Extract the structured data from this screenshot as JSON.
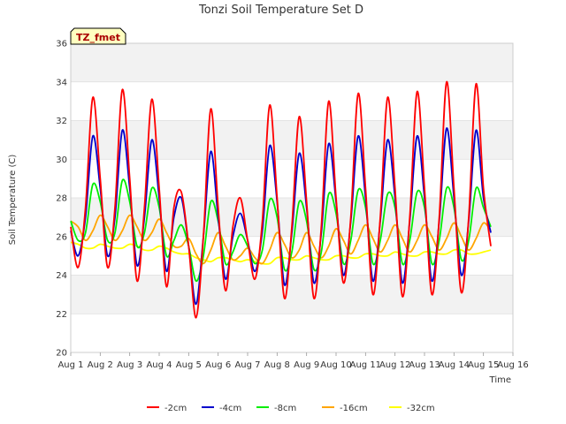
{
  "chart_data": {
    "type": "line",
    "title": "Tonzi Soil Temperature Set D",
    "xlabel": "Time",
    "ylabel": "Soil Temperature (C)",
    "badge": "TZ_fmet",
    "xlim": [
      1,
      16
    ],
    "ylim": [
      20,
      36
    ],
    "y_ticks": [
      20,
      22,
      24,
      26,
      28,
      30,
      32,
      34,
      36
    ],
    "x_ticks": [
      {
        "value": 1,
        "label": "Aug 1"
      },
      {
        "value": 2,
        "label": "Aug 2"
      },
      {
        "value": 3,
        "label": "Aug 3"
      },
      {
        "value": 4,
        "label": "Aug 4"
      },
      {
        "value": 5,
        "label": "Aug 5"
      },
      {
        "value": 6,
        "label": "Aug 6"
      },
      {
        "value": 7,
        "label": "Aug 7"
      },
      {
        "value": 8,
        "label": "Aug 8"
      },
      {
        "value": 9,
        "label": "Aug 9"
      },
      {
        "value": 10,
        "label": "Aug 10"
      },
      {
        "value": 11,
        "label": "Aug 11"
      },
      {
        "value": 12,
        "label": "Aug 12"
      },
      {
        "value": 13,
        "label": "Aug 13"
      },
      {
        "value": 14,
        "label": "Aug 14"
      },
      {
        "value": 15,
        "label": "Aug 15"
      },
      {
        "value": 16,
        "label": "Aug 16"
      }
    ],
    "grid": true,
    "legend_position": "bottom",
    "series": [
      {
        "name": "-2cm",
        "color": "#ff0000",
        "x": [
          1.0,
          1.25,
          1.5,
          1.75,
          2.0,
          2.25,
          2.5,
          2.75,
          3.0,
          3.25,
          3.5,
          3.75,
          4.0,
          4.25,
          4.5,
          4.75,
          5.0,
          5.25,
          5.5,
          5.75,
          6.0,
          6.25,
          6.5,
          6.75,
          7.0,
          7.25,
          7.5,
          7.75,
          8.0,
          8.25,
          8.5,
          8.75,
          9.0,
          9.25,
          9.5,
          9.75,
          10.0,
          10.25,
          10.5,
          10.75,
          11.0,
          11.25,
          11.5,
          11.75,
          12.0,
          12.25,
          12.5,
          12.75,
          13.0,
          13.25,
          13.5,
          13.75,
          14.0,
          14.25,
          14.5,
          14.75,
          15.0,
          15.25
        ],
        "y": [
          26.5,
          24.4,
          27.5,
          33.2,
          29.0,
          24.4,
          27.5,
          33.6,
          29.0,
          23.7,
          27.5,
          33.1,
          28.5,
          23.4,
          27.5,
          28.3,
          25.5,
          21.8,
          26.0,
          32.6,
          27.5,
          23.2,
          26.5,
          28.0,
          25.8,
          23.8,
          26.8,
          32.8,
          28.0,
          22.8,
          26.5,
          32.2,
          27.8,
          22.8,
          26.5,
          33.0,
          28.0,
          23.6,
          27.0,
          33.4,
          28.5,
          23.0,
          27.0,
          33.2,
          28.5,
          22.9,
          27.0,
          33.5,
          28.5,
          23.0,
          27.0,
          34.0,
          28.5,
          23.1,
          27.0,
          33.9,
          28.5,
          25.5
        ]
      },
      {
        "name": "-4cm",
        "color": "#0000cc",
        "x": [
          1.0,
          1.25,
          1.5,
          1.75,
          2.0,
          2.25,
          2.5,
          2.75,
          3.0,
          3.25,
          3.5,
          3.75,
          4.0,
          4.25,
          4.5,
          4.75,
          5.0,
          5.25,
          5.5,
          5.75,
          6.0,
          6.25,
          6.5,
          6.75,
          7.0,
          7.25,
          7.5,
          7.75,
          8.0,
          8.25,
          8.5,
          8.75,
          9.0,
          9.25,
          9.5,
          9.75,
          10.0,
          10.25,
          10.5,
          10.75,
          11.0,
          11.25,
          11.5,
          11.75,
          12.0,
          12.25,
          12.5,
          12.75,
          13.0,
          13.25,
          13.5,
          13.75,
          14.0,
          14.25,
          14.5,
          14.75,
          15.0,
          15.25
        ],
        "y": [
          26.3,
          25.0,
          27.0,
          31.2,
          28.5,
          25.0,
          27.0,
          31.5,
          28.5,
          24.5,
          27.0,
          31.0,
          28.0,
          24.2,
          27.0,
          28.0,
          25.5,
          22.5,
          26.0,
          30.4,
          27.0,
          23.8,
          26.0,
          27.2,
          25.8,
          24.2,
          26.3,
          30.7,
          27.8,
          23.5,
          26.2,
          30.3,
          27.5,
          23.6,
          26.2,
          30.8,
          27.8,
          24.0,
          26.8,
          31.2,
          28.0,
          23.7,
          26.8,
          31.0,
          28.0,
          23.6,
          26.8,
          31.2,
          28.0,
          23.7,
          26.8,
          31.6,
          28.0,
          24.0,
          26.8,
          31.5,
          28.0,
          26.2
        ]
      },
      {
        "name": "-8cm",
        "color": "#00ee00",
        "x": [
          1.0,
          1.25,
          1.5,
          1.75,
          2.0,
          2.25,
          2.5,
          2.75,
          3.0,
          3.25,
          3.5,
          3.75,
          4.0,
          4.25,
          4.5,
          4.75,
          5.0,
          5.25,
          5.5,
          5.75,
          6.0,
          6.25,
          6.5,
          6.75,
          7.0,
          7.25,
          7.5,
          7.75,
          8.0,
          8.25,
          8.5,
          8.75,
          9.0,
          9.25,
          9.5,
          9.75,
          10.0,
          10.25,
          10.5,
          10.75,
          11.0,
          11.25,
          11.5,
          11.75,
          12.0,
          12.25,
          12.5,
          12.75,
          13.0,
          13.25,
          13.5,
          13.75,
          14.0,
          14.25,
          14.5,
          14.75,
          15.0,
          15.25
        ],
        "y": [
          26.8,
          25.8,
          26.2,
          28.7,
          27.8,
          25.8,
          26.2,
          28.9,
          27.8,
          25.5,
          26.2,
          28.5,
          27.5,
          25.0,
          25.8,
          26.6,
          25.5,
          23.7,
          25.0,
          27.8,
          26.8,
          24.6,
          25.2,
          26.1,
          25.5,
          24.6,
          25.3,
          27.9,
          27.0,
          24.3,
          25.2,
          27.8,
          26.8,
          24.3,
          25.2,
          28.2,
          27.2,
          24.6,
          25.8,
          28.4,
          27.5,
          24.6,
          25.8,
          28.2,
          27.5,
          24.6,
          25.8,
          28.3,
          27.5,
          24.6,
          25.8,
          28.5,
          27.5,
          24.8,
          25.8,
          28.5,
          27.5,
          26.5
        ]
      },
      {
        "name": "-16cm",
        "color": "#ffa500",
        "x": [
          1.0,
          1.25,
          1.5,
          1.75,
          2.0,
          2.25,
          2.5,
          2.75,
          3.0,
          3.25,
          3.5,
          3.75,
          4.0,
          4.25,
          4.5,
          4.75,
          5.0,
          5.25,
          5.5,
          5.75,
          6.0,
          6.25,
          6.5,
          6.75,
          7.0,
          7.25,
          7.5,
          7.75,
          8.0,
          8.25,
          8.5,
          8.75,
          9.0,
          9.25,
          9.5,
          9.75,
          10.0,
          10.25,
          10.5,
          10.75,
          11.0,
          11.25,
          11.5,
          11.75,
          12.0,
          12.25,
          12.5,
          12.75,
          13.0,
          13.25,
          13.5,
          13.75,
          14.0,
          14.25,
          14.5,
          14.75,
          15.0,
          15.25
        ],
        "y": [
          26.8,
          26.5,
          25.8,
          26.3,
          27.1,
          26.5,
          25.8,
          26.3,
          27.1,
          26.5,
          25.8,
          26.2,
          26.9,
          26.2,
          25.5,
          25.5,
          25.9,
          25.1,
          24.6,
          25.3,
          26.2,
          25.5,
          24.8,
          25.0,
          25.4,
          24.9,
          24.6,
          25.3,
          26.2,
          25.6,
          24.9,
          25.3,
          26.2,
          25.5,
          24.9,
          25.5,
          26.4,
          25.8,
          25.1,
          25.8,
          26.6,
          25.9,
          25.2,
          25.8,
          26.6,
          25.9,
          25.2,
          25.8,
          26.6,
          26.0,
          25.3,
          25.9,
          26.7,
          26.0,
          25.3,
          25.9,
          26.7,
          26.3
        ]
      },
      {
        "name": "-32cm",
        "color": "#ffff00",
        "x": [
          1.0,
          1.25,
          1.5,
          1.75,
          2.0,
          2.25,
          2.5,
          2.75,
          3.0,
          3.25,
          3.5,
          3.75,
          4.0,
          4.25,
          4.5,
          4.75,
          5.0,
          5.25,
          5.5,
          5.75,
          6.0,
          6.25,
          6.5,
          6.75,
          7.0,
          7.25,
          7.5,
          7.75,
          8.0,
          8.25,
          8.5,
          8.75,
          9.0,
          9.25,
          9.5,
          9.75,
          10.0,
          10.25,
          10.5,
          10.75,
          11.0,
          11.25,
          11.5,
          11.75,
          12.0,
          12.25,
          12.5,
          12.75,
          13.0,
          13.25,
          13.5,
          13.75,
          14.0,
          14.25,
          14.5,
          14.75,
          15.0,
          15.25
        ],
        "y": [
          25.7,
          25.6,
          25.4,
          25.4,
          25.6,
          25.5,
          25.4,
          25.4,
          25.6,
          25.5,
          25.3,
          25.3,
          25.5,
          25.4,
          25.2,
          25.1,
          25.1,
          24.9,
          24.8,
          24.7,
          24.9,
          24.9,
          24.8,
          24.7,
          24.8,
          24.7,
          24.6,
          24.6,
          24.9,
          24.9,
          24.8,
          24.8,
          25.0,
          24.9,
          24.8,
          24.8,
          25.0,
          25.0,
          24.9,
          24.9,
          25.1,
          25.1,
          25.0,
          25.0,
          25.2,
          25.1,
          25.0,
          25.0,
          25.2,
          25.2,
          25.1,
          25.1,
          25.3,
          25.3,
          25.1,
          25.1,
          25.2,
          25.3
        ]
      }
    ]
  }
}
